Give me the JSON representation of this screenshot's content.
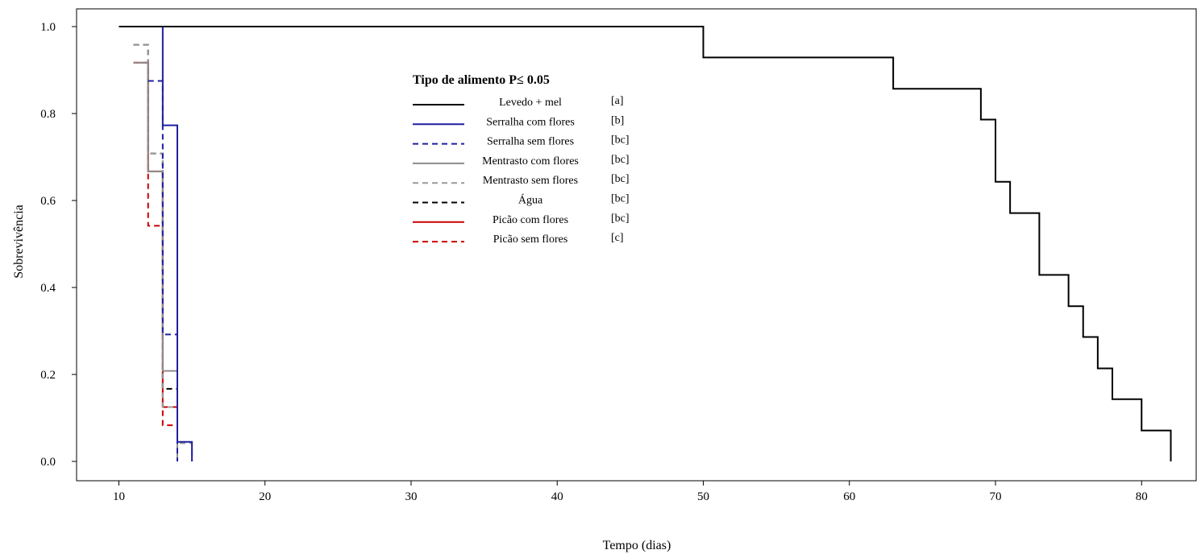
{
  "chart_data": {
    "type": "line",
    "subtype": "step",
    "xlabel": "Tempo (dias)",
    "ylabel": "Sobrevivência",
    "xlim": [
      10,
      82
    ],
    "ylim": [
      0,
      1
    ],
    "xticks": [
      10,
      20,
      30,
      40,
      50,
      60,
      70,
      80
    ],
    "yticks": [
      "0.0",
      "0.2",
      "0.4",
      "0.6",
      "0.8",
      "1.0"
    ],
    "grid": false,
    "legend": {
      "title": "Tipo de alimento   P≤ 0.05",
      "position": "top-center"
    },
    "series": [
      {
        "name": "Levedo + mel",
        "group": "[a]",
        "color": "#000000",
        "dash": "solid",
        "x": [
          10,
          50,
          63,
          69,
          70,
          71,
          73,
          75,
          76,
          77,
          78,
          80,
          82
        ],
        "y": [
          1.0,
          0.929,
          0.857,
          0.786,
          0.643,
          0.571,
          0.429,
          0.357,
          0.286,
          0.214,
          0.143,
          0.071,
          0.0
        ]
      },
      {
        "name": "Serralha com flores",
        "group": "[b]",
        "color": "#1f1fa0",
        "dash": "solid",
        "x": [
          11,
          13,
          14,
          15
        ],
        "y": [
          1.0,
          0.773,
          0.045,
          0.0
        ]
      },
      {
        "name": "Serralha sem flores",
        "group": "[bc]",
        "color": "#1f1fa0",
        "dash": "dashed",
        "x": [
          12,
          13,
          14
        ],
        "y": [
          0.875,
          0.292,
          0.0
        ]
      },
      {
        "name": "Mentrasto com flores",
        "group": "[bc]",
        "color": "#8c8c8c",
        "dash": "solid",
        "x": [
          11,
          12,
          13,
          14
        ],
        "y": [
          0.917,
          0.667,
          0.208,
          0.0
        ]
      },
      {
        "name": "Mentrasto sem flores",
        "group": "[bc]",
        "color": "#999999",
        "dash": "dashed",
        "x": [
          11,
          12,
          13,
          14,
          15
        ],
        "y": [
          0.958,
          0.708,
          0.125,
          0.042,
          0.0
        ]
      },
      {
        "name": "Água",
        "group": "[bc]",
        "color": "#000000",
        "dash": "dashed",
        "x": [
          11,
          12,
          13,
          14
        ],
        "y": [
          0.958,
          0.708,
          0.167,
          0.0
        ]
      },
      {
        "name": "Picão com flores",
        "group": "[bc]",
        "color": "#cc0000",
        "dash": "solid",
        "x": [
          11,
          12,
          13,
          14
        ],
        "y": [
          0.917,
          0.667,
          0.125,
          0.0
        ]
      },
      {
        "name": "Picão sem flores",
        "group": "[c]",
        "color": "#cc0000",
        "dash": "dashed",
        "x": [
          11,
          12,
          13,
          14
        ],
        "y": [
          0.917,
          0.542,
          0.083,
          0.0
        ]
      }
    ]
  }
}
